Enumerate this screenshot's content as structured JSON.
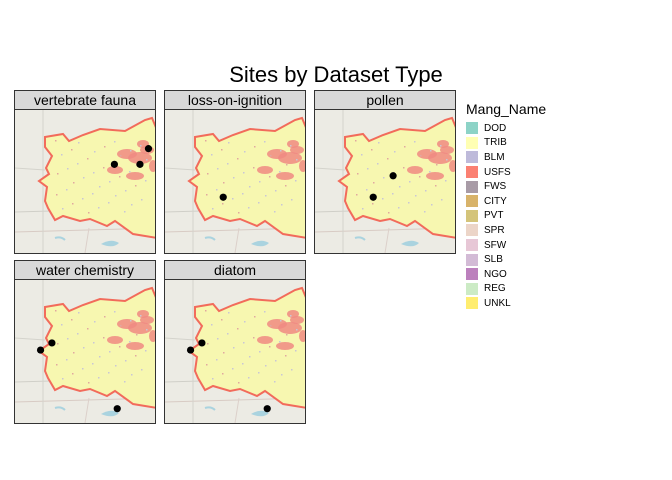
{
  "title": "Sites by Dataset Type",
  "legend": {
    "title": "Mang_Name",
    "items": [
      {
        "label": "DOD",
        "color": "#8dd3c7"
      },
      {
        "label": "TRIB",
        "color": "#ffffb3"
      },
      {
        "label": "BLM",
        "color": "#bebada"
      },
      {
        "label": "USFS",
        "color": "#fb8072"
      },
      {
        "label": "FWS",
        "color": "#a89ba6"
      },
      {
        "label": "CITY",
        "color": "#d8b36a"
      },
      {
        "label": "PVT",
        "color": "#d4c47a"
      },
      {
        "label": "SPR",
        "color": "#ecd5c8"
      },
      {
        "label": "SFW",
        "color": "#e7c7d6"
      },
      {
        "label": "SLB",
        "color": "#d3bbd6"
      },
      {
        "label": "NGO",
        "color": "#bc80bd"
      },
      {
        "label": "REG",
        "color": "#ccebc5"
      },
      {
        "label": "UNKL",
        "color": "#ffed6f"
      }
    ]
  },
  "panels": [
    {
      "label": "vertebrate fauna",
      "sites": [
        [
          0.94,
          0.27
        ],
        [
          0.7,
          0.38
        ],
        [
          0.88,
          0.38
        ]
      ]
    },
    {
      "label": "loss-on-ignition",
      "sites": [
        [
          0.41,
          0.61
        ]
      ]
    },
    {
      "label": "pollen",
      "sites": [
        [
          0.55,
          0.46
        ],
        [
          0.41,
          0.61
        ]
      ]
    },
    {
      "label": "water chemistry",
      "sites": [
        [
          0.26,
          0.44
        ],
        [
          0.18,
          0.49
        ],
        [
          0.72,
          0.9
        ]
      ]
    },
    {
      "label": "diatom",
      "sites": [
        [
          0.26,
          0.44
        ],
        [
          0.18,
          0.49
        ],
        [
          0.72,
          0.9
        ]
      ]
    }
  ]
}
